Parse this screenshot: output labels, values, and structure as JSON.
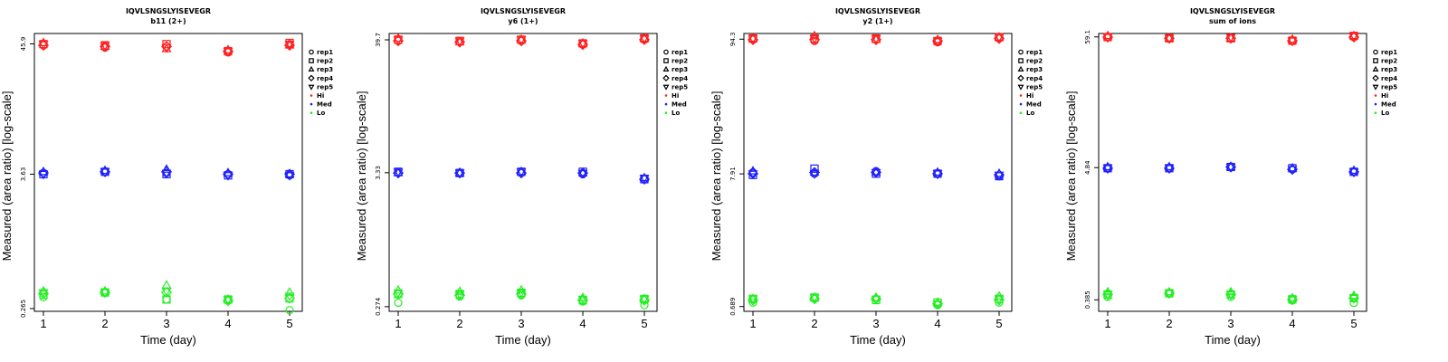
{
  "figure": {
    "title": "IQVLSNGSLYISEVEGR"
  },
  "legend": {
    "entries": [
      {
        "label": "rep1",
        "marker": "circle"
      },
      {
        "label": "rep2",
        "marker": "square"
      },
      {
        "label": "rep3",
        "marker": "triangle-up"
      },
      {
        "label": "rep4",
        "marker": "diamond"
      },
      {
        "label": "rep5",
        "marker": "triangle-down"
      },
      {
        "label": "Hi",
        "color": "#ff2020"
      },
      {
        "label": "Med",
        "color": "#2020ff"
      },
      {
        "label": "Lo",
        "color": "#22ee22"
      }
    ]
  },
  "colors": {
    "Hi": "#ff2020",
    "Med": "#2020ff",
    "Lo": "#22ee22",
    "axis": "#000000"
  },
  "chart_data": [
    {
      "type": "scatter",
      "title": "IQVLSNGSLYISEVEGR",
      "subtitle": "b11 (2+)",
      "xlabel": "Time (day)",
      "ylabel": "Measured (area ratio) [log-scale]",
      "x_ticks": [
        "1",
        "2",
        "3",
        "4",
        "5"
      ],
      "y_ticks": [
        "0.265",
        "3.63",
        "45.9"
      ],
      "ylim": [
        -0.6,
        1.75
      ],
      "series": [
        {
          "name": "Hi",
          "points": {
            "rep1": [
              1.65,
              1.63,
              1.64,
              1.59,
              1.66
            ],
            "rep2": [
              1.66,
              1.65,
              1.66,
              1.6,
              1.67
            ],
            "rep3": [
              1.67,
              1.64,
              1.62,
              1.61,
              1.65
            ],
            "rep4": [
              1.65,
              1.64,
              1.64,
              1.6,
              1.65
            ],
            "rep5": [
              1.66,
              1.65,
              1.63,
              1.6,
              1.66
            ]
          }
        },
        {
          "name": "Med",
          "points": {
            "rep1": [
              0.57,
              0.58,
              0.57,
              0.56,
              0.55
            ],
            "rep2": [
              0.56,
              0.58,
              0.56,
              0.55,
              0.56
            ],
            "rep3": [
              0.58,
              0.59,
              0.6,
              0.57,
              0.56
            ],
            "rep4": [
              0.57,
              0.58,
              0.58,
              0.56,
              0.56
            ],
            "rep5": [
              0.56,
              0.58,
              0.57,
              0.55,
              0.55
            ]
          }
        },
        {
          "name": "Lo",
          "points": {
            "rep1": [
              -0.48,
              -0.44,
              -0.5,
              -0.51,
              -0.59
            ],
            "rep2": [
              -0.46,
              -0.44,
              -0.5,
              -0.5,
              -0.49
            ],
            "rep3": [
              -0.43,
              -0.43,
              -0.38,
              -0.5,
              -0.44
            ],
            "rep4": [
              -0.45,
              -0.44,
              -0.44,
              -0.51,
              -0.49
            ],
            "rep5": [
              -0.44,
              -0.44,
              -0.43,
              -0.5,
              -0.47
            ]
          }
        }
      ]
    },
    {
      "type": "scatter",
      "title": "IQVLSNGSLYISEVEGR",
      "subtitle": "y6 (1+)",
      "xlabel": "Time (day)",
      "ylabel": "Measured (area ratio) [log-scale]",
      "x_ticks": [
        "1",
        "2",
        "3",
        "4",
        "5"
      ],
      "y_ticks": [
        "0.274",
        "3.33",
        "39.7"
      ],
      "ylim": [
        -0.6,
        1.65
      ],
      "series": [
        {
          "name": "Hi",
          "points": {
            "rep1": [
              1.59,
              1.58,
              1.59,
              1.56,
              1.6
            ],
            "rep2": [
              1.6,
              1.59,
              1.6,
              1.57,
              1.61
            ],
            "rep3": [
              1.61,
              1.58,
              1.6,
              1.57,
              1.61
            ],
            "rep4": [
              1.59,
              1.58,
              1.59,
              1.56,
              1.6
            ],
            "rep5": [
              1.6,
              1.59,
              1.6,
              1.57,
              1.61
            ]
          }
        },
        {
          "name": "Med",
          "points": {
            "rep1": [
              0.52,
              0.52,
              0.52,
              0.51,
              0.47
            ],
            "rep2": [
              0.53,
              0.52,
              0.53,
              0.53,
              0.47
            ],
            "rep3": [
              0.52,
              0.52,
              0.53,
              0.52,
              0.48
            ],
            "rep4": [
              0.52,
              0.52,
              0.52,
              0.52,
              0.47
            ],
            "rep5": [
              0.53,
              0.52,
              0.53,
              0.52,
              0.48
            ]
          }
        },
        {
          "name": "Lo",
          "points": {
            "rep1": [
              -0.53,
              -0.48,
              -0.47,
              -0.52,
              -0.55
            ],
            "rep2": [
              -0.46,
              -0.46,
              -0.45,
              -0.51,
              -0.5
            ],
            "rep3": [
              -0.43,
              -0.44,
              -0.43,
              -0.49,
              -0.5
            ],
            "rep4": [
              -0.46,
              -0.47,
              -0.46,
              -0.51,
              -0.51
            ],
            "rep5": [
              -0.45,
              -0.46,
              -0.45,
              -0.5,
              -0.5
            ]
          }
        }
      ]
    },
    {
      "type": "scatter",
      "title": "IQVLSNGSLYISEVEGR",
      "subtitle": "y2 (1+)",
      "xlabel": "Time (day)",
      "ylabel": "Measured (area ratio) [log-scale]",
      "x_ticks": [
        "1",
        "2",
        "3",
        "4",
        "5"
      ],
      "y_ticks": [
        "0.689",
        "7.91",
        "94.3"
      ],
      "ylim": [
        -0.2,
        2.02
      ],
      "series": [
        {
          "name": "Hi",
          "points": {
            "rep1": [
              1.97,
              1.96,
              1.97,
              1.95,
              1.98
            ],
            "rep2": [
              1.98,
              1.98,
              1.98,
              1.96,
              1.99
            ],
            "rep3": [
              1.98,
              2.0,
              1.97,
              1.97,
              1.99
            ],
            "rep4": [
              1.97,
              1.97,
              1.97,
              1.96,
              1.98
            ],
            "rep5": [
              1.98,
              1.98,
              1.98,
              1.96,
              1.99
            ]
          }
        },
        {
          "name": "Med",
          "points": {
            "rep1": [
              0.91,
              0.9,
              0.92,
              0.9,
              0.88
            ],
            "rep2": [
              0.89,
              0.94,
              0.9,
              0.9,
              0.88
            ],
            "rep3": [
              0.92,
              0.91,
              0.91,
              0.91,
              0.9
            ],
            "rep4": [
              0.9,
              0.91,
              0.91,
              0.9,
              0.89
            ],
            "rep5": [
              0.9,
              0.9,
              0.91,
              0.9,
              0.89
            ]
          }
        },
        {
          "name": "Lo",
          "points": {
            "rep1": [
              -0.13,
              -0.1,
              -0.1,
              -0.15,
              -0.13
            ],
            "rep2": [
              -0.1,
              -0.09,
              -0.11,
              -0.13,
              -0.1
            ],
            "rep3": [
              -0.1,
              -0.09,
              -0.09,
              -0.13,
              -0.08
            ],
            "rep4": [
              -0.11,
              -0.1,
              -0.1,
              -0.14,
              -0.11
            ],
            "rep5": [
              -0.1,
              -0.09,
              -0.1,
              -0.14,
              -0.1
            ]
          }
        }
      ]
    },
    {
      "type": "scatter",
      "title": "IQVLSNGSLYISEVEGR",
      "subtitle": "sum of ions",
      "xlabel": "Time (day)",
      "ylabel": "Measured (area ratio) [log-scale]",
      "x_ticks": [
        "1",
        "2",
        "3",
        "4",
        "5"
      ],
      "y_ticks": [
        "0.385",
        "4.84",
        "59.1"
      ],
      "ylim": [
        -0.51,
        1.8
      ],
      "series": [
        {
          "name": "Hi",
          "points": {
            "rep1": [
              1.77,
              1.76,
              1.76,
              1.74,
              1.77
            ],
            "rep2": [
              1.77,
              1.76,
              1.76,
              1.74,
              1.78
            ],
            "rep3": [
              1.78,
              1.76,
              1.76,
              1.75,
              1.78
            ],
            "rep4": [
              1.77,
              1.76,
              1.76,
              1.74,
              1.77
            ],
            "rep5": [
              1.77,
              1.76,
              1.77,
              1.74,
              1.78
            ]
          }
        },
        {
          "name": "Med",
          "points": {
            "rep1": [
              0.68,
              0.68,
              0.69,
              0.67,
              0.65
            ],
            "rep2": [
              0.68,
              0.68,
              0.69,
              0.68,
              0.65
            ],
            "rep3": [
              0.69,
              0.69,
              0.69,
              0.68,
              0.66
            ],
            "rep4": [
              0.68,
              0.68,
              0.69,
              0.67,
              0.65
            ],
            "rep5": [
              0.68,
              0.68,
              0.69,
              0.67,
              0.65
            ]
          }
        },
        {
          "name": "Lo",
          "points": {
            "rep1": [
              -0.39,
              -0.36,
              -0.39,
              -0.42,
              -0.44
            ],
            "rep2": [
              -0.37,
              -0.36,
              -0.37,
              -0.41,
              -0.4
            ],
            "rep3": [
              -0.35,
              -0.35,
              -0.35,
              -0.4,
              -0.38
            ],
            "rep4": [
              -0.37,
              -0.36,
              -0.37,
              -0.41,
              -0.4
            ],
            "rep5": [
              -0.37,
              -0.36,
              -0.37,
              -0.41,
              -0.4
            ]
          }
        }
      ]
    }
  ]
}
